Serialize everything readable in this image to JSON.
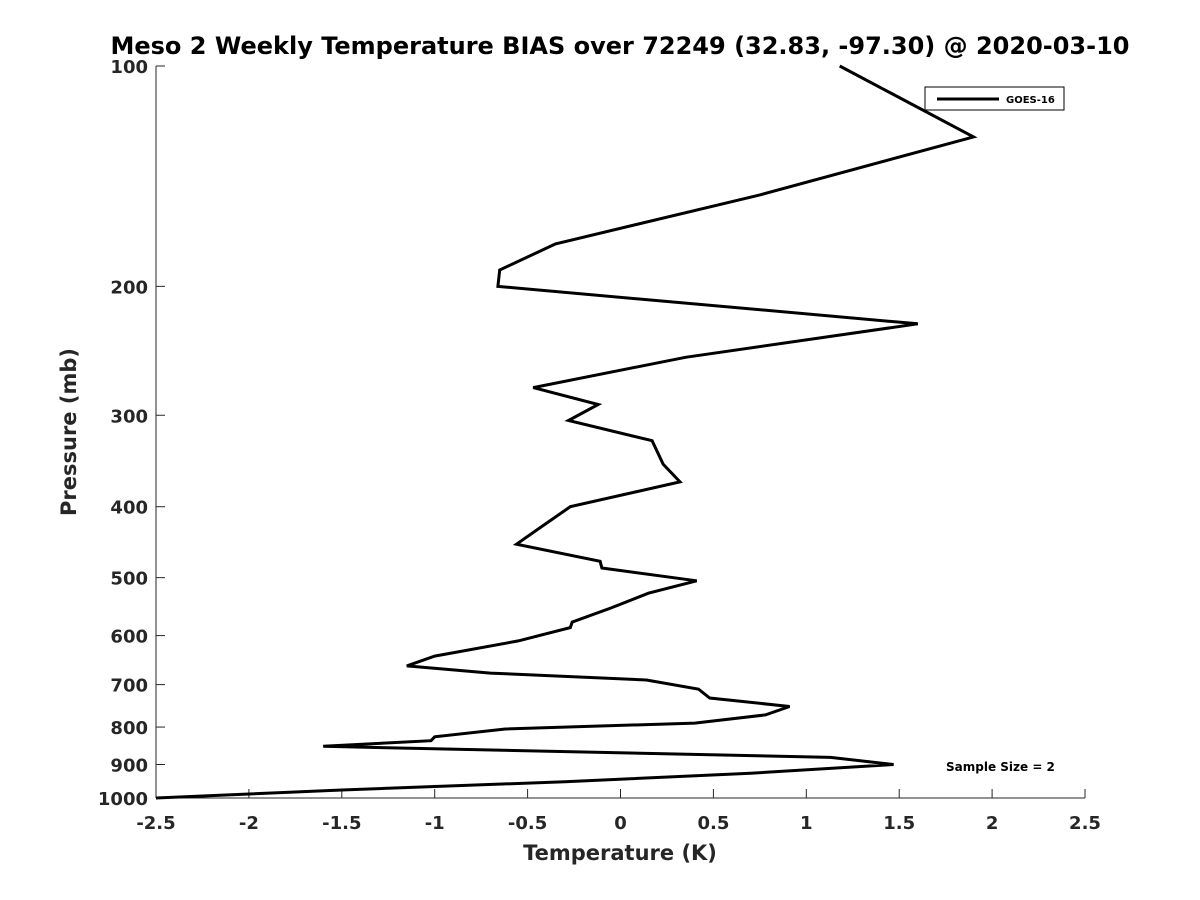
{
  "chart_data": {
    "type": "line",
    "title": "Meso 2 Weekly Temperature BIAS over 72249 (32.83, -97.30) @ 2020-03-10",
    "xlabel": "Temperature (K)",
    "ylabel": "Pressure (mb)",
    "xlim": [
      -2.5,
      2.5
    ],
    "ylim": [
      100,
      1000
    ],
    "y_scale": "log",
    "y_reversed": true,
    "grid": false,
    "legend_position": "top-right",
    "x_ticks": [
      -2.5,
      -2,
      -1.5,
      -1,
      -0.5,
      0,
      0.5,
      1,
      1.5,
      2,
      2.5
    ],
    "x_tick_labels": [
      "-2.5",
      "-2",
      "-1.5",
      "-1",
      "-0.5",
      "0",
      "0.5",
      "1",
      "1.5",
      "2",
      "2.5"
    ],
    "y_ticks": [
      100,
      200,
      300,
      400,
      500,
      600,
      700,
      800,
      900,
      1000
    ],
    "y_tick_labels": [
      "100",
      "200",
      "300",
      "400",
      "500",
      "600",
      "700",
      "800",
      "900",
      "1000"
    ],
    "series": [
      {
        "name": "GOES-16",
        "color": "#000000",
        "points": [
          [
            1.18,
            100
          ],
          [
            1.9,
            125
          ],
          [
            0.75,
            150
          ],
          [
            -0.35,
            175
          ],
          [
            -0.65,
            190
          ],
          [
            -0.66,
            200
          ],
          [
            1.6,
            225
          ],
          [
            0.35,
            250
          ],
          [
            -0.47,
            275
          ],
          [
            -0.12,
            290
          ],
          [
            -0.28,
            305
          ],
          [
            0.17,
            325
          ],
          [
            0.23,
            350
          ],
          [
            0.32,
            370
          ],
          [
            -0.27,
            400
          ],
          [
            -0.42,
            425
          ],
          [
            -0.56,
            450
          ],
          [
            -0.11,
            475
          ],
          [
            -0.1,
            485
          ],
          [
            0.41,
            505
          ],
          [
            0.15,
            525
          ],
          [
            -0.05,
            550
          ],
          [
            -0.26,
            575
          ],
          [
            -0.27,
            585
          ],
          [
            -0.55,
            610
          ],
          [
            -1.0,
            640
          ],
          [
            -1.15,
            660
          ],
          [
            -0.7,
            675
          ],
          [
            0.14,
            690
          ],
          [
            0.42,
            710
          ],
          [
            0.48,
            730
          ],
          [
            0.91,
            750
          ],
          [
            0.78,
            770
          ],
          [
            0.4,
            790
          ],
          [
            -0.62,
            805
          ],
          [
            -1.0,
            825
          ],
          [
            -1.02,
            835
          ],
          [
            -1.6,
            850
          ],
          [
            1.13,
            880
          ],
          [
            1.47,
            900
          ],
          [
            0.7,
            925
          ],
          [
            -0.3,
            950
          ],
          [
            -1.5,
            975
          ],
          [
            -2.5,
            1000
          ]
        ]
      }
    ],
    "annotations": [
      "Sample Size = 2"
    ]
  }
}
